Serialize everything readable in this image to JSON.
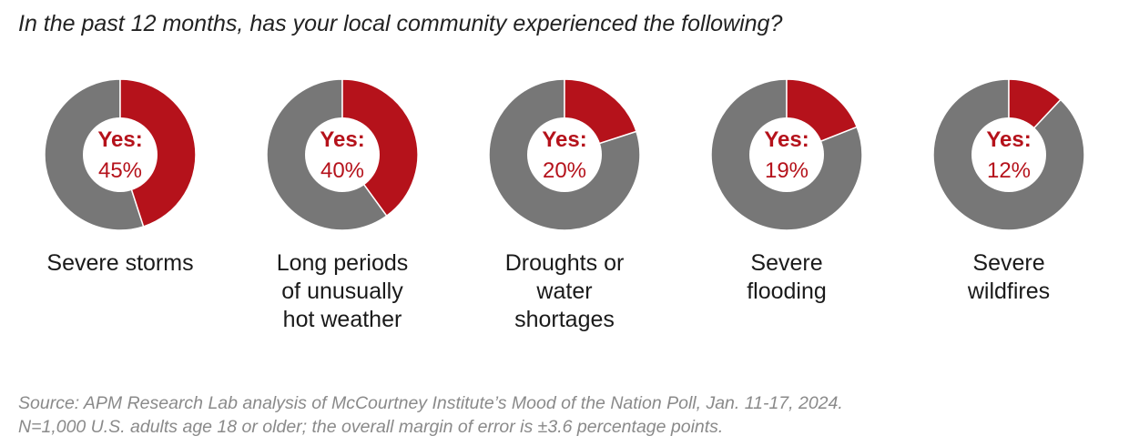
{
  "title": "In the past 12 months, has your local community experienced the following?",
  "center_prefix": "Yes:",
  "colors": {
    "yes": "#b5121b",
    "no": "#777777",
    "center": "#ffffff"
  },
  "chart_data": {
    "type": "pie",
    "categories": [
      "Severe storms",
      "Long periods of unusually hot weather",
      "Droughts or water shortages",
      "Severe flooding",
      "Severe wildfires"
    ],
    "labels": [
      "Severe storms",
      "Long periods\nof unusually\nhot weather",
      "Droughts or\nwater\nshortages",
      "Severe\nflooding",
      "Severe\nwildfires"
    ],
    "value_labels": [
      "45%",
      "40%",
      "20%",
      "19%",
      "12%"
    ],
    "values": [
      45,
      40,
      20,
      19,
      12
    ]
  },
  "source": {
    "line1": "Source: APM Research Lab analysis of McCourtney Institute’s Mood of the Nation Poll, Jan. 11-17, 2024.",
    "line2": "N=1,000 U.S. adults age 18 or older; the overall margin of error is ±3.6 percentage points."
  }
}
